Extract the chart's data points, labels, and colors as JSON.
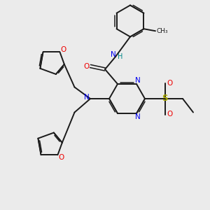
{
  "background_color": "#ebebeb",
  "bond_color": "#1a1a1a",
  "atom_colors": {
    "N": "#0000ee",
    "O": "#ee0000",
    "S": "#aaaa00",
    "C": "#1a1a1a",
    "H": "#008888"
  }
}
